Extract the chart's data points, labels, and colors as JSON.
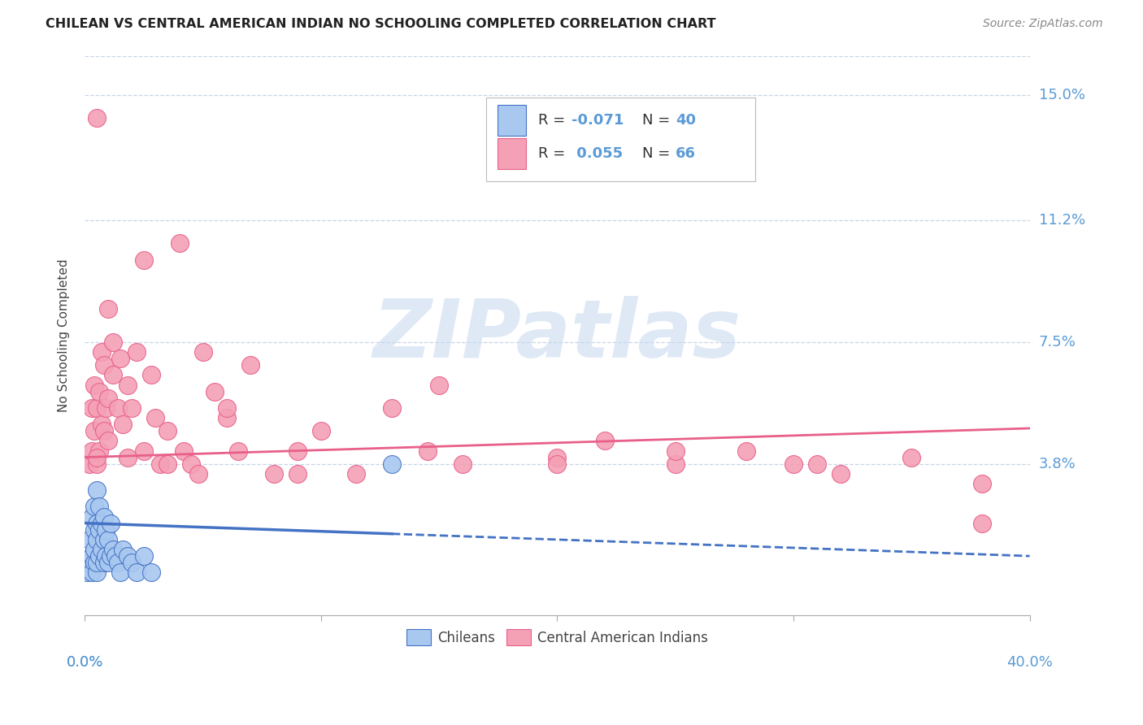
{
  "title": "CHILEAN VS CENTRAL AMERICAN INDIAN NO SCHOOLING COMPLETED CORRELATION CHART",
  "source": "Source: ZipAtlas.com",
  "ylabel": "No Schooling Completed",
  "ytick_labels": [
    "3.8%",
    "7.5%",
    "11.2%",
    "15.0%"
  ],
  "ytick_values": [
    0.038,
    0.075,
    0.112,
    0.15
  ],
  "xlim": [
    0.0,
    0.4
  ],
  "ylim": [
    -0.008,
    0.162
  ],
  "legend_r1": "-0.071",
  "legend_n1": "40",
  "legend_r2": "0.055",
  "legend_n2": "66",
  "color_chilean": "#A8C8F0",
  "color_central": "#F4A0B5",
  "color_chilean_line": "#4472C4",
  "color_central_line": "#E8608A",
  "color_blue_text": "#5B9BD5",
  "background_color": "#FFFFFF",
  "grid_color": "#C8D4E8",
  "watermark_text": "ZIPatlas",
  "chilean_points_x": [
    0.001,
    0.002,
    0.002,
    0.003,
    0.003,
    0.003,
    0.004,
    0.004,
    0.004,
    0.004,
    0.005,
    0.005,
    0.005,
    0.005,
    0.005,
    0.006,
    0.006,
    0.006,
    0.007,
    0.007,
    0.008,
    0.008,
    0.008,
    0.009,
    0.009,
    0.01,
    0.01,
    0.011,
    0.011,
    0.012,
    0.013,
    0.014,
    0.015,
    0.016,
    0.018,
    0.02,
    0.022,
    0.025,
    0.028,
    0.13
  ],
  "chilean_points_y": [
    0.005,
    0.008,
    0.015,
    0.005,
    0.01,
    0.022,
    0.008,
    0.012,
    0.018,
    0.025,
    0.005,
    0.008,
    0.015,
    0.02,
    0.03,
    0.01,
    0.018,
    0.025,
    0.012,
    0.02,
    0.008,
    0.015,
    0.022,
    0.01,
    0.018,
    0.008,
    0.015,
    0.01,
    0.02,
    0.012,
    0.01,
    0.008,
    0.005,
    0.012,
    0.01,
    0.008,
    0.005,
    0.01,
    0.005,
    0.038
  ],
  "central_points_x": [
    0.002,
    0.003,
    0.003,
    0.004,
    0.004,
    0.005,
    0.005,
    0.006,
    0.006,
    0.007,
    0.007,
    0.008,
    0.008,
    0.009,
    0.01,
    0.01,
    0.012,
    0.012,
    0.014,
    0.015,
    0.016,
    0.018,
    0.02,
    0.022,
    0.025,
    0.028,
    0.03,
    0.032,
    0.035,
    0.04,
    0.042,
    0.045,
    0.048,
    0.05,
    0.055,
    0.06,
    0.065,
    0.07,
    0.08,
    0.09,
    0.1,
    0.115,
    0.13,
    0.145,
    0.16,
    0.2,
    0.22,
    0.25,
    0.28,
    0.3,
    0.32,
    0.35,
    0.38,
    0.005,
    0.01,
    0.018,
    0.025,
    0.035,
    0.06,
    0.09,
    0.15,
    0.2,
    0.25,
    0.31,
    0.38,
    0.005
  ],
  "central_points_y": [
    0.038,
    0.042,
    0.055,
    0.048,
    0.062,
    0.038,
    0.055,
    0.042,
    0.06,
    0.05,
    0.072,
    0.048,
    0.068,
    0.055,
    0.045,
    0.058,
    0.065,
    0.075,
    0.055,
    0.07,
    0.05,
    0.062,
    0.055,
    0.072,
    0.042,
    0.065,
    0.052,
    0.038,
    0.048,
    0.105,
    0.042,
    0.038,
    0.035,
    0.072,
    0.06,
    0.052,
    0.042,
    0.068,
    0.035,
    0.042,
    0.048,
    0.035,
    0.055,
    0.042,
    0.038,
    0.04,
    0.045,
    0.038,
    0.042,
    0.038,
    0.035,
    0.04,
    0.032,
    0.143,
    0.085,
    0.04,
    0.1,
    0.038,
    0.055,
    0.035,
    0.062,
    0.038,
    0.042,
    0.038,
    0.02,
    0.04
  ]
}
